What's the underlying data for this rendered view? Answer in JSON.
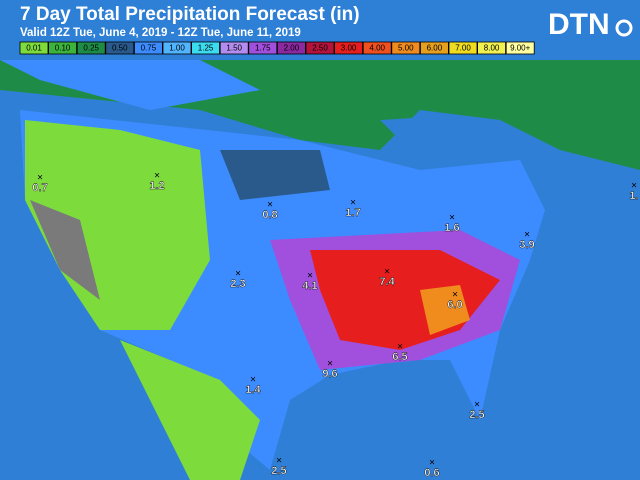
{
  "header": {
    "title": "7 Day Total Precipitation Forecast (in)",
    "subtitle": "Valid 12Z Tue, June 4, 2019 - 12Z Tue, June 11, 2019",
    "logo": "DTN"
  },
  "legend": [
    {
      "label": "0.01",
      "color": "#7ddc3c"
    },
    {
      "label": "0.10",
      "color": "#3cb43c"
    },
    {
      "label": "0.25",
      "color": "#1e8c46"
    },
    {
      "label": "0.50",
      "color": "#2a5a8c"
    },
    {
      "label": "0.75",
      "color": "#3c8cff"
    },
    {
      "label": "1.00",
      "color": "#50b4ff"
    },
    {
      "label": "1.25",
      "color": "#3cdcf0"
    },
    {
      "label": "1.50",
      "color": "#b48cf0"
    },
    {
      "label": "1.75",
      "color": "#a050dc"
    },
    {
      "label": "2.00",
      "color": "#8c28a0"
    },
    {
      "label": "2.50",
      "color": "#b4143c"
    },
    {
      "label": "3.00",
      "color": "#e61e1e"
    },
    {
      "label": "4.00",
      "color": "#f0501e"
    },
    {
      "label": "5.00",
      "color": "#f08c1e"
    },
    {
      "label": "6.00",
      "color": "#e6a01e"
    },
    {
      "label": "7.00",
      "color": "#f0dc1e"
    },
    {
      "label": "8.00",
      "color": "#f0f050"
    },
    {
      "label": "9.00+",
      "color": "#ffffa0"
    }
  ],
  "points": [
    {
      "label": "0.7"
    },
    {
      "label": "1.2"
    },
    {
      "label": "0.8"
    },
    {
      "label": "1.7"
    },
    {
      "label": "1.6"
    },
    {
      "label": "3.9"
    },
    {
      "label": "2.3"
    },
    {
      "label": "4.1"
    },
    {
      "label": "7.4"
    },
    {
      "label": "6.0"
    },
    {
      "label": "6.5"
    },
    {
      "label": "9.6"
    },
    {
      "label": "1.4"
    },
    {
      "label": "2.5"
    },
    {
      "label": "2.5"
    },
    {
      "label": "0.6"
    },
    {
      "label": "1."
    }
  ]
}
